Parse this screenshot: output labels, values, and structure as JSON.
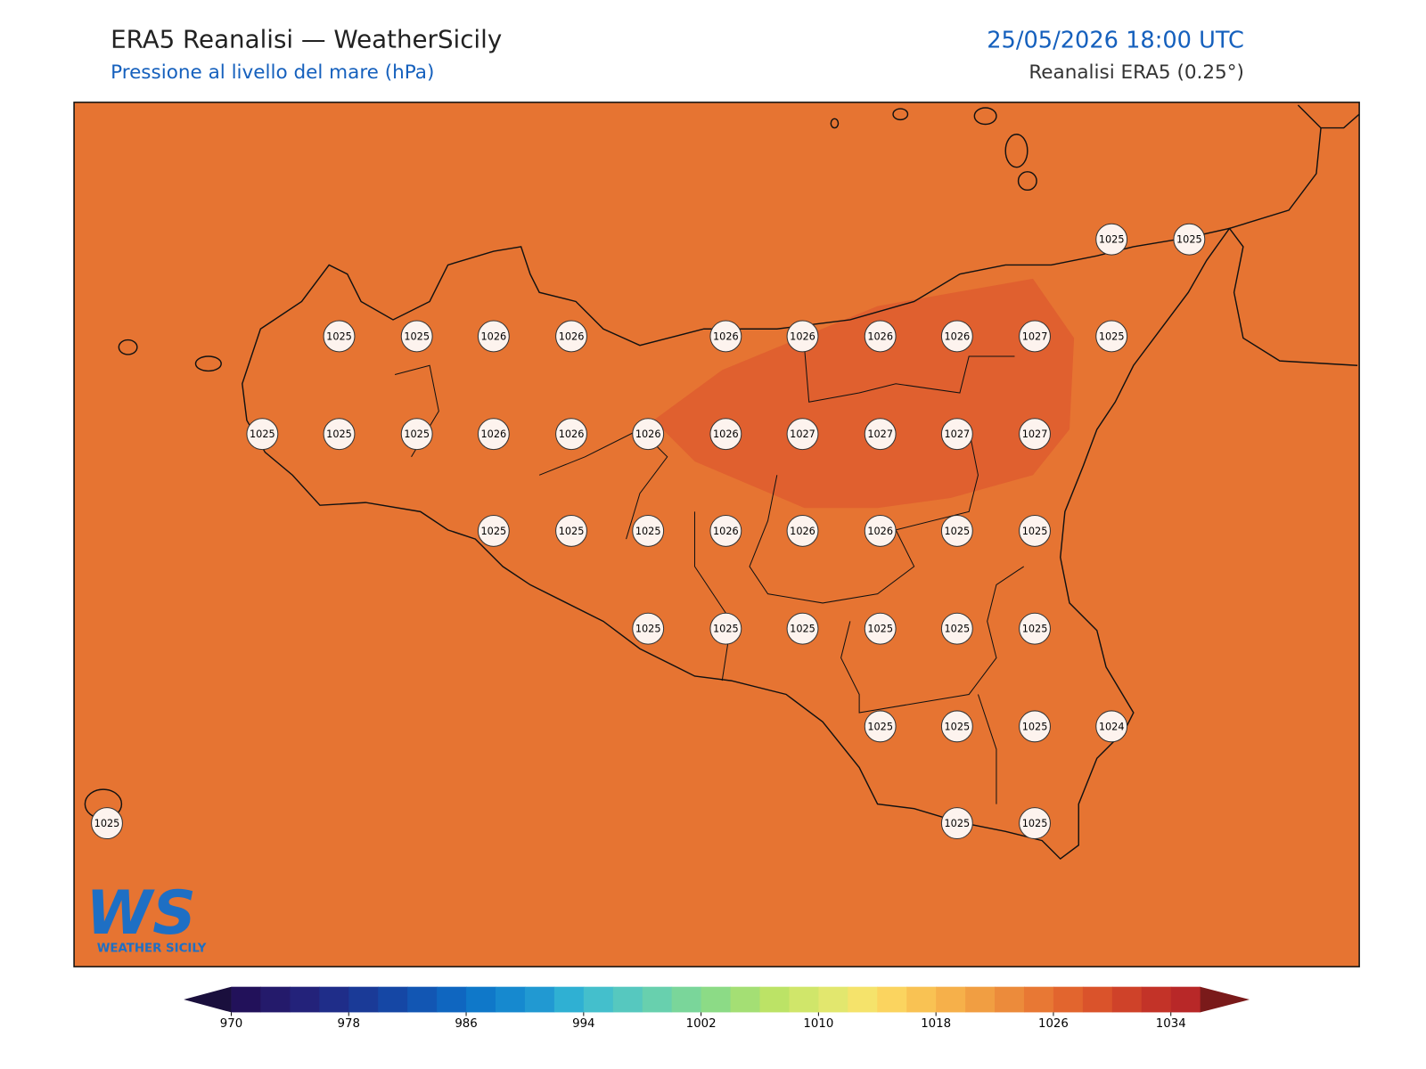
{
  "header": {
    "title": "ERA5 Reanalisi — WeatherSicily",
    "subtitle": "Pressione al livello del mare (hPa)",
    "datetime": "25/05/2026 18:00 UTC",
    "source": "Reanalisi ERA5 (0.25°)"
  },
  "map": {
    "background": "#e67432",
    "high_area_color": "#e0602f",
    "stations": [
      1025,
      1025,
      1025,
      1025,
      1026,
      1026,
      1026,
      1026,
      1026,
      1026,
      1027,
      1025,
      1025,
      1025,
      1025,
      1026,
      1026,
      1026,
      1026,
      1027,
      1027,
      1027,
      1027,
      1025,
      1025,
      1025,
      1026,
      1026,
      1026,
      1025,
      1025,
      1025,
      1025,
      1025,
      1025,
      1025,
      1025,
      1025,
      1025,
      1025,
      1024,
      1025,
      1025,
      1025
    ]
  },
  "colorbar": {
    "lim": [
      970,
      1036
    ],
    "ticks": [
      970,
      978,
      986,
      994,
      1002,
      1010,
      1018,
      1026,
      1034
    ],
    "under_color": "#1a0f3d",
    "over_color": "#7a1a1a",
    "colors": [
      "#22115a",
      "#241a6b",
      "#23227a",
      "#1f2d89",
      "#1a3a97",
      "#1547a5",
      "#1256b3",
      "#0f66c0",
      "#0f78c9",
      "#1689cf",
      "#2199d2",
      "#2fb0d3",
      "#44bfcc",
      "#56c8bf",
      "#68d0ae",
      "#7ad69a",
      "#8cdb86",
      "#a4df74",
      "#bce366",
      "#d0e66a",
      "#e2e76e",
      "#f5e36b",
      "#fbd45f",
      "#f9c253",
      "#f6b04a",
      "#f19e42",
      "#ec8b3b",
      "#e87834",
      "#e2652e",
      "#da532b",
      "#cf4229",
      "#c33328",
      "#b82828"
    ]
  },
  "logo": {
    "text": "WS",
    "caption": "WEATHER SICILY"
  }
}
